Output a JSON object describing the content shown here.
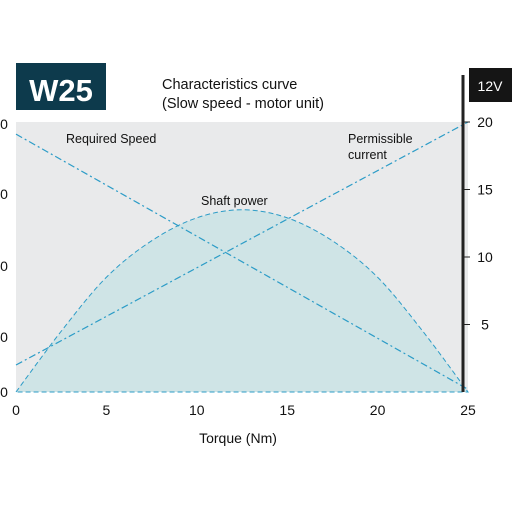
{
  "chart_data": {
    "type": "line",
    "badge": "W25",
    "voltage_tag": "12V",
    "title": "Characteristics curve",
    "subtitle": "(Slow speed - motor unit)",
    "xlabel": "Torque (Nm)",
    "xlim": [
      0,
      25
    ],
    "x_ticks": [
      0,
      5,
      10,
      15,
      20,
      25
    ],
    "right_ylim": [
      0,
      20
    ],
    "right_y_ticks": [
      5,
      10,
      15,
      20
    ],
    "left_y_tick_labels": [
      "0",
      "0",
      "0",
      "0",
      "0"
    ],
    "grid": false,
    "series": [
      {
        "name": "Required Speed",
        "style": "dash-dot line",
        "x": [
          0,
          25
        ],
        "y": [
          19.1,
          0.2
        ]
      },
      {
        "name": "Permissible current",
        "style": "dash-dot line",
        "x": [
          0,
          25
        ],
        "y": [
          2.0,
          20.0
        ]
      },
      {
        "name": "Shaft power",
        "style": "filled area with dashed outline",
        "x": [
          0,
          2.5,
          5,
          7.5,
          10,
          12.5,
          15,
          17.5,
          20,
          22.5,
          25
        ],
        "y": [
          0,
          4.5,
          8.5,
          11.2,
          12.9,
          13.5,
          12.9,
          11.2,
          8.5,
          4.5,
          0
        ]
      }
    ],
    "labels": {
      "required_speed": "Required Speed",
      "permissible_current_line1": "Permissible",
      "permissible_current_line2": "current",
      "shaft_power": "Shaft power"
    },
    "colors": {
      "plot_background": "#e9eaeb",
      "line": "#2c9cc7",
      "area_fill": "#cfe4e6",
      "badge_background": "#0d3a4c",
      "badge_text": "#ffffff",
      "tag_background": "#151515"
    }
  }
}
